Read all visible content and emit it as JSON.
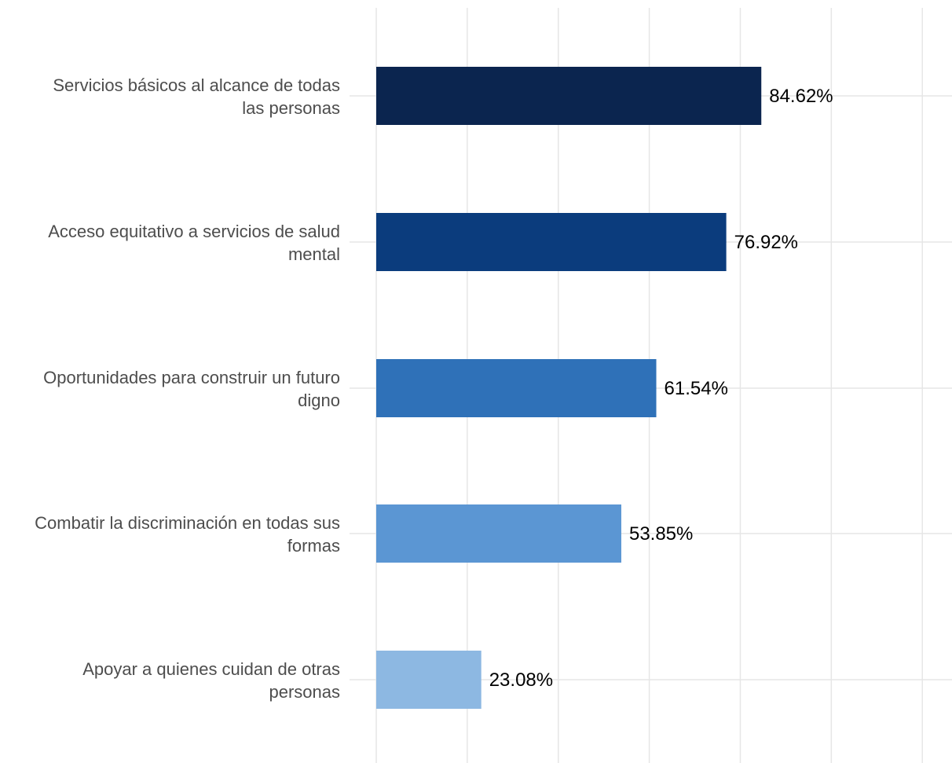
{
  "chart_data": {
    "type": "bar",
    "orientation": "horizontal",
    "categories": [
      [
        "Servicios básicos al alcance de todas",
        "las personas"
      ],
      [
        "Acceso equitativo a servicios de salud",
        "mental"
      ],
      [
        "Oportunidades para construir un futuro",
        "digno"
      ],
      [
        "Combatir la discriminación en todas sus",
        "formas"
      ],
      [
        "Apoyar a quienes cuidan de otras",
        "personas"
      ]
    ],
    "values": [
      84.62,
      76.92,
      61.54,
      53.85,
      23.08
    ],
    "value_labels": [
      "84.62%",
      "76.92%",
      "61.54%",
      "53.85%",
      "23.08%"
    ],
    "colors": [
      "#0b254f",
      "#0b3c7d",
      "#2f71b8",
      "#5b96d3",
      "#8db8e2"
    ],
    "xlim": [
      0,
      120
    ],
    "grid": true,
    "title": "",
    "xlabel": "",
    "ylabel": ""
  }
}
